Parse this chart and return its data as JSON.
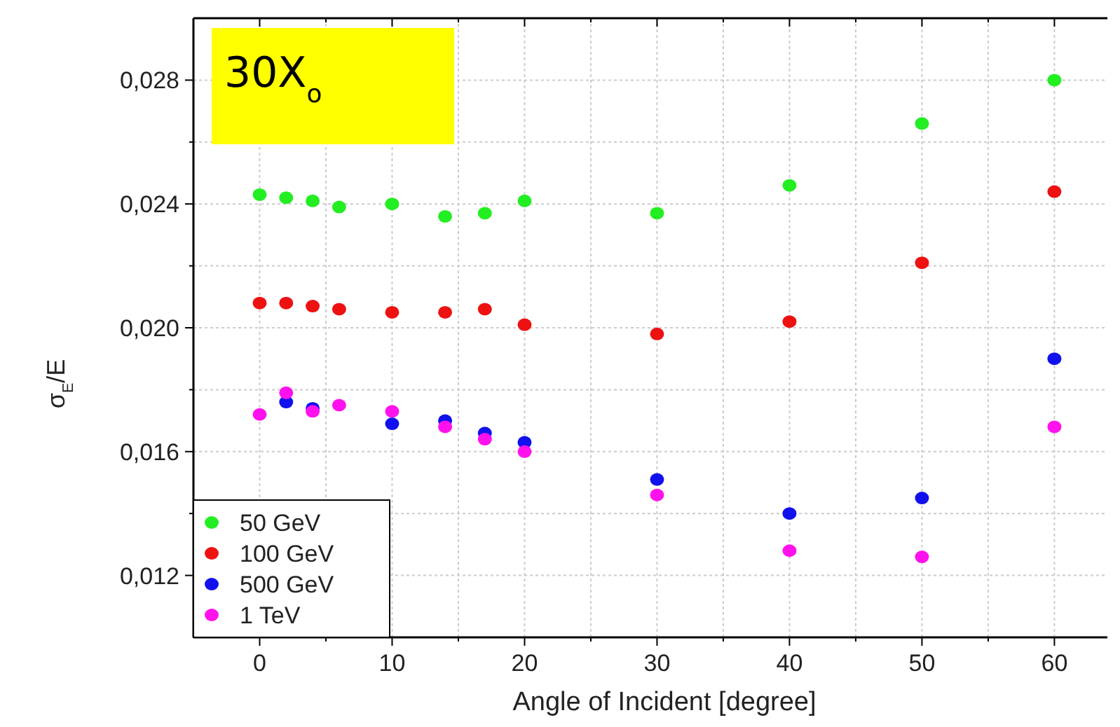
{
  "chart_data": {
    "type": "scatter",
    "xlabel": "Angle of Incident [degree]",
    "ylabel": "σ$_{E}$/E",
    "annotations": [
      "30X$_{o}$"
    ],
    "x": [
      0,
      2,
      4,
      6,
      10,
      14,
      17,
      20,
      30,
      40,
      50,
      60
    ],
    "series": [
      {
        "name": "50 GeV",
        "color": "#22ee22",
        "values": [
          0.0243,
          0.0242,
          0.0241,
          0.0239,
          0.024,
          0.0236,
          0.0237,
          0.0241,
          0.0237,
          0.0246,
          0.0266,
          0.028
        ]
      },
      {
        "name": "100 GeV",
        "color": "#ee1111",
        "values": [
          0.0208,
          0.0208,
          0.0207,
          0.0206,
          0.0205,
          0.0205,
          0.0206,
          0.0201,
          0.0198,
          0.0202,
          0.0221,
          0.0244
        ]
      },
      {
        "name": "500 GeV",
        "color": "#1111ee",
        "values": [
          null,
          0.0176,
          0.0174,
          null,
          0.0169,
          0.017,
          0.0166,
          0.0163,
          0.0151,
          0.014,
          0.0145,
          0.019
        ]
      },
      {
        "name": "1 TeV",
        "color": "#ff11ee",
        "values": [
          0.0172,
          0.0179,
          0.0173,
          0.0175,
          0.0173,
          0.0168,
          0.0164,
          0.016,
          0.0146,
          0.0128,
          0.0126,
          0.0168
        ]
      }
    ],
    "xlim": [
      -5,
      64
    ],
    "ylim": [
      0.01,
      0.03
    ],
    "xticks": [
      0,
      {
        "value": 5,
        "label": null
      },
      10,
      {
        "value": 15,
        "label": null
      },
      20,
      {
        "value": 25,
        "label": null
      },
      30,
      {
        "value": 35,
        "label": null
      },
      40,
      {
        "value": 45,
        "label": null
      },
      50,
      {
        "value": 55,
        "label": null
      },
      60
    ],
    "yticks": [
      {
        "value": 0.012,
        "label": "0,012"
      },
      {
        "value": 0.014,
        "label": null
      },
      {
        "value": 0.016,
        "label": "0,016"
      },
      {
        "value": 0.018,
        "label": null
      },
      {
        "value": 0.02,
        "label": "0,020"
      },
      {
        "value": 0.022,
        "label": null
      },
      {
        "value": 0.024,
        "label": "0,024"
      },
      {
        "value": 0.026,
        "label": null
      },
      {
        "value": 0.028,
        "label": "0,028"
      }
    ],
    "grid": true,
    "legend": "bottom left",
    "marker": "circle"
  }
}
